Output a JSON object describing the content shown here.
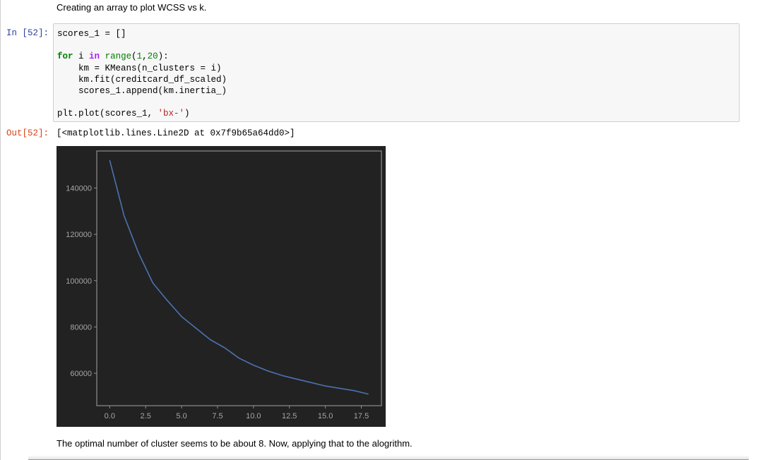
{
  "markdown": {
    "intro": "Creating an array to plot WCSS vs k.",
    "conclusion": "The optimal number of cluster seems to be about 8. Now, applying that to the alogrithm."
  },
  "cell": {
    "in_prompt": "In [52]:",
    "out_prompt": "Out[52]:",
    "code": {
      "line1": "scores_1 = []",
      "line3_kw": "for",
      "line3_var": " i ",
      "line3_in": "in",
      "line3_sp": " ",
      "line3_func": "range",
      "line3_open": "(",
      "line3_n1": "1",
      "line3_comma": ",",
      "line3_n2": "20",
      "line3_close": "):",
      "line4": "    km = KMeans(n_clusters = i)",
      "line5": "    km.fit(creditcard_df_scaled)",
      "line6": "    scores_1.append(km.inertia_)",
      "line8_pre": "plt.plot(scores_1, ",
      "line8_str": "'bx-'",
      "line8_post": ")"
    },
    "output_text": "[<matplotlib.lines.Line2D at 0x7f9b65a64dd0>]"
  },
  "colors": {
    "plot_bg": "#222222",
    "axes_frame": "#8e8e8e",
    "tick_label": "#a5a5a5",
    "line": "#4c72b0"
  },
  "chart_data": {
    "type": "line",
    "title": "",
    "xlabel": "",
    "ylabel": "",
    "xlim": [
      -0.9,
      18.9
    ],
    "ylim": [
      46000,
      156000
    ],
    "x_ticks": [
      0.0,
      2.5,
      5.0,
      7.5,
      10.0,
      12.5,
      15.0,
      17.5
    ],
    "x_tick_labels": [
      "0.0",
      "2.5",
      "5.0",
      "7.5",
      "10.0",
      "12.5",
      "15.0",
      "17.5"
    ],
    "y_ticks": [
      60000,
      80000,
      100000,
      120000,
      140000
    ],
    "y_tick_labels": [
      "60000",
      "80000",
      "100000",
      "120000",
      "140000"
    ],
    "grid": false,
    "series": [
      {
        "x": [
          0,
          1,
          2,
          3,
          4,
          5,
          6,
          7,
          8,
          9,
          10,
          11,
          12,
          13,
          14,
          15,
          16,
          17,
          18
        ],
        "values": [
          152000,
          128000,
          112000,
          99000,
          91500,
          84500,
          79500,
          74500,
          71000,
          66500,
          63500,
          61000,
          59000,
          57500,
          56000,
          54500,
          53500,
          52500,
          51000
        ]
      }
    ]
  }
}
